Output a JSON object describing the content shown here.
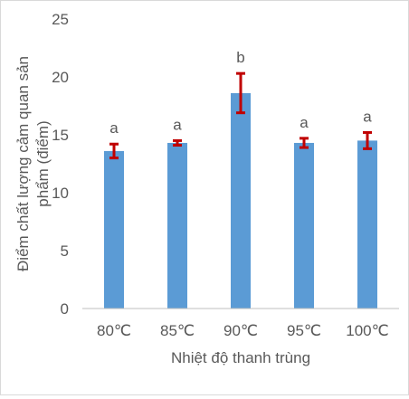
{
  "chart_data": {
    "type": "bar",
    "title": "",
    "xlabel": "Nhiệt độ thanh trùng",
    "ylabel": "Điểm chất lượng cảm quan sản phẩm (điểm)",
    "ylabel_lines": [
      "Điểm chất lượng cảm quan sản",
      "phẩm (điểm)"
    ],
    "categories": [
      "80℃",
      "85℃",
      "90℃",
      "95℃",
      "100℃"
    ],
    "values": [
      13.6,
      14.3,
      18.6,
      14.3,
      14.5
    ],
    "error": [
      0.6,
      0.2,
      1.7,
      0.4,
      0.7
    ],
    "labels": [
      "a",
      "a",
      "b",
      "a",
      "a"
    ],
    "ylim": [
      0,
      25
    ],
    "yticks": [
      0,
      5,
      10,
      15,
      20,
      25
    ],
    "grid": false,
    "legend": "none",
    "colors": {
      "bar": "#5b9bd5",
      "error_bar": "#c00000",
      "axis": "#bfbfbf",
      "text": "#595959"
    }
  }
}
